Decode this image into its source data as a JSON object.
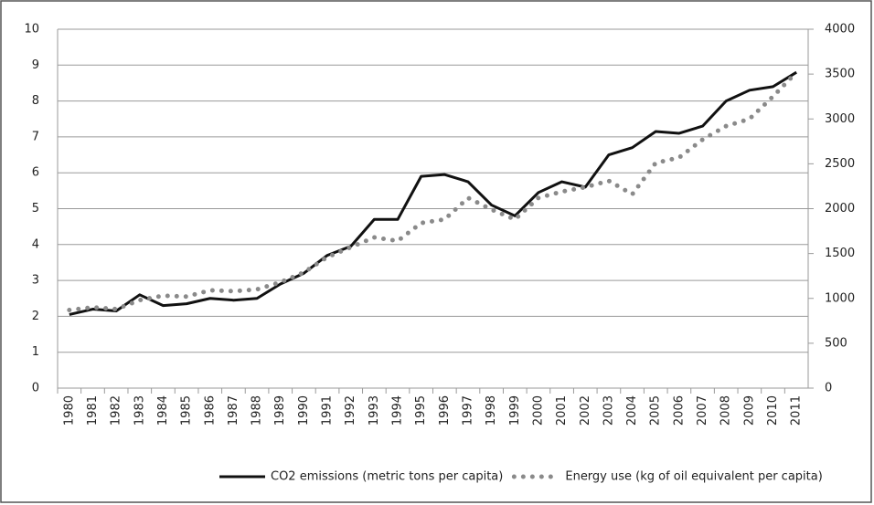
{
  "chart_data": {
    "type": "line",
    "categories": [
      "1980",
      "1981",
      "1982",
      "1983",
      "1984",
      "1985",
      "1986",
      "1987",
      "1988",
      "1989",
      "1990",
      "1991",
      "1992",
      "1993",
      "1994",
      "1995",
      "1996",
      "1997",
      "1998",
      "1999",
      "2000",
      "2001",
      "2002",
      "2003",
      "2004",
      "2005",
      "2006",
      "2007",
      "2008",
      "2009",
      "2010",
      "2011"
    ],
    "series": [
      {
        "name": "CO2 emissions (metric tons per capita)",
        "color": "#111111",
        "values": [
          2.05,
          2.2,
          2.15,
          2.6,
          2.3,
          2.35,
          2.5,
          2.45,
          2.5,
          2.9,
          3.2,
          3.7,
          3.95,
          4.7,
          4.7,
          5.9,
          5.95,
          5.75,
          5.1,
          4.8,
          5.45,
          5.75,
          5.6,
          6.5,
          6.7,
          7.15,
          7.1,
          7.3,
          8.0,
          8.3,
          8.4,
          8.8
        ]
      },
      {
        "name": "Energy use (kg of oil equivalent per capita)",
        "color": "#8a8a8a",
        "axis": "y2",
        "values": [
          870,
          900,
          880,
          980,
          1030,
          1020,
          1090,
          1080,
          1100,
          1180,
          1290,
          1460,
          1570,
          1680,
          1640,
          1840,
          1880,
          2120,
          1990,
          1880,
          2120,
          2190,
          2240,
          2310,
          2160,
          2510,
          2570,
          2770,
          2920,
          3000,
          3250,
          3520
        ]
      }
    ],
    "ylim": [
      0,
      10
    ],
    "yticks": [
      0,
      1,
      2,
      3,
      4,
      5,
      6,
      7,
      8,
      9,
      10
    ],
    "y2lim": [
      0,
      4000
    ],
    "y2ticks": [
      0,
      500,
      1000,
      1500,
      2000,
      2500,
      3000,
      3500,
      4000
    ],
    "grid": true,
    "legend": "bottom"
  }
}
